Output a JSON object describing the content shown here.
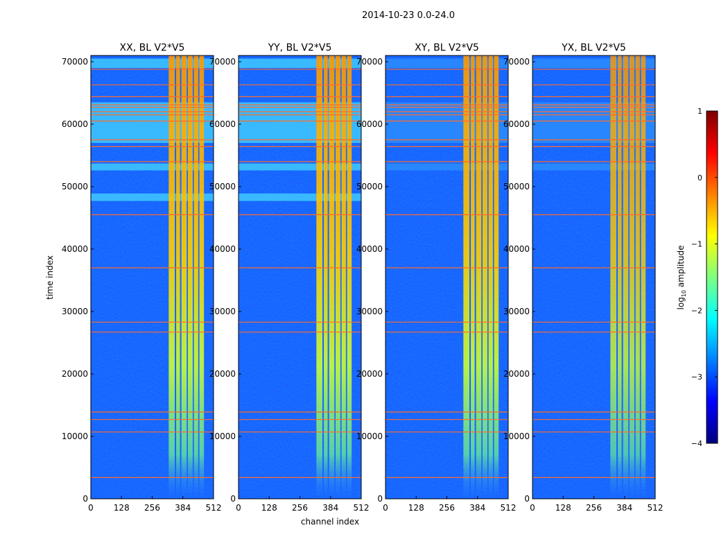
{
  "figure": {
    "suptitle": "2014-10-23 0.0-24.0",
    "xlabel": "channel index",
    "ylabel": "time index"
  },
  "colorbar": {
    "label_prefix": "log",
    "label_sub": "10",
    "label_suffix": " amplitude",
    "range": [
      -4,
      1
    ],
    "ticks": [
      1,
      0,
      -1,
      -2,
      -3,
      -4
    ],
    "tick_labels": [
      "1",
      "0",
      "−1",
      "−2",
      "−3",
      "−4"
    ],
    "colormap": "jet",
    "stops": [
      "#00007f",
      "#0000ff",
      "#007fff",
      "#00ffff",
      "#7fff7f",
      "#ffff00",
      "#ff7f00",
      "#ff0000",
      "#7f0000"
    ]
  },
  "chart_data": {
    "type": "heatmap",
    "x": {
      "range": [
        0,
        512
      ],
      "ticks": [
        0,
        128,
        256,
        384,
        512
      ],
      "tick_labels": [
        "0",
        "128",
        "256",
        "384",
        "512"
      ]
    },
    "y": {
      "range": [
        0,
        71000
      ],
      "ticks": [
        0,
        10000,
        20000,
        30000,
        40000,
        50000,
        60000,
        70000
      ],
      "tick_labels": [
        "0",
        "10000",
        "20000",
        "30000",
        "40000",
        "50000",
        "60000",
        "70000"
      ]
    },
    "panels": [
      {
        "title": "XX, BL V2*V5"
      },
      {
        "title": "YY, BL V2*V5"
      },
      {
        "title": "XY, BL V2*V5"
      },
      {
        "title": "YX, BL V2*V5"
      }
    ],
    "background_log_amplitude": -3.0,
    "channel_bands": [
      {
        "from": 325,
        "to": 350,
        "level": -1.0
      },
      {
        "from": 356,
        "to": 372,
        "level": -1.1
      },
      {
        "from": 378,
        "to": 400,
        "level": -1.0
      },
      {
        "from": 405,
        "to": 425,
        "level": -1.0
      },
      {
        "from": 430,
        "to": 448,
        "level": -1.1
      },
      {
        "from": 453,
        "to": 472,
        "level": -1.2
      }
    ],
    "time_flag_lines": [
      3400,
      10700,
      12700,
      13900,
      26700,
      28300,
      37000,
      45500,
      54000,
      56400,
      57500,
      60500,
      61500,
      62000,
      62700,
      63100,
      64400,
      66300,
      68800
    ],
    "time_bright_bands": [
      {
        "from": 47700,
        "to": 48900,
        "level": -2.1
      },
      {
        "from": 52600,
        "to": 53700,
        "level": -2.1
      },
      {
        "from": 57000,
        "to": 63500,
        "level": -2.3
      },
      {
        "from": 69000,
        "to": 70500,
        "level": -2.3
      }
    ]
  }
}
